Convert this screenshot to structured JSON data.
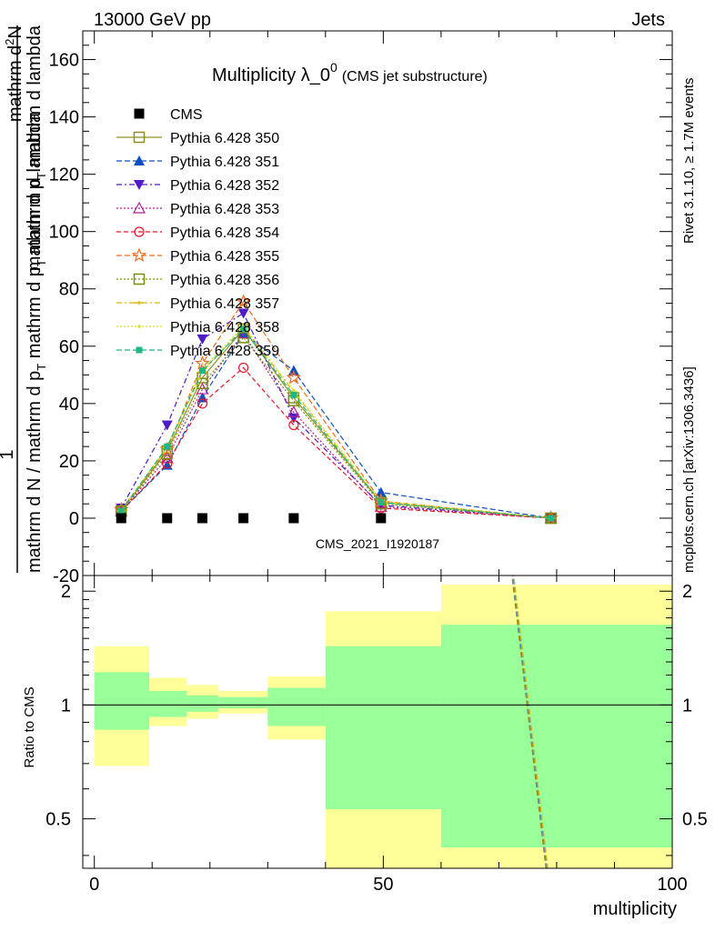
{
  "header": {
    "left": "13000 GeV pp",
    "right": "Jets"
  },
  "side_labels": {
    "rivet": "Rivet 3.1.10, ≥ 1.7M events",
    "mcplots": "mcplots.cern.ch [arXiv:1306.3436]"
  },
  "chart_data": [
    {
      "type": "line",
      "title_main": "Multiplicity λ_0",
      "title_sup": "0",
      "title_sub": "(CMS jet substructure)",
      "ylabel_top_parts": [
        "mathrm d",
        "N"
      ],
      "ylabel_top_sup": "2",
      "ylabel_mid": "mathrm d p_T mathrm d lambda",
      "ylabel_mid_parts": [
        "mathrm d p",
        "T",
        " mathrm d lambda"
      ],
      "ylabel_one": "1",
      "ylabel_bottom_parts": [
        "mathrm d N / mathrm d p",
        "T",
        " mathrm d p"
      ],
      "ylabel_bottom_end": " mathrm d lambda",
      "ylim": [
        -20,
        170
      ],
      "yticks": [
        -20,
        0,
        20,
        40,
        60,
        80,
        100,
        120,
        140,
        160
      ],
      "xlim": [
        -2,
        100
      ],
      "watermark": "CMS_2021_I1920187",
      "x": [
        4.65,
        12.6,
        18.7,
        25.8,
        34.5,
        49.6,
        79.0
      ],
      "series": [
        {
          "name": "CMS",
          "color": "#000000",
          "dash": "",
          "marker": "square-filled",
          "values": [
            0,
            0,
            0,
            0,
            0,
            0,
            null
          ]
        },
        {
          "name": "Pythia 6.428 350",
          "color": "#8f8f21",
          "dash": "",
          "marker": "square-open",
          "values": [
            2.5,
            23.5,
            49,
            66,
            42,
            5.5,
            0
          ]
        },
        {
          "name": "Pythia 6.428 351",
          "color": "#0e4fc1",
          "dash": "6,3",
          "marker": "triangle-up-filled",
          "values": [
            2.5,
            18.5,
            42,
            64.5,
            51.5,
            9,
            0
          ]
        },
        {
          "name": "Pythia 6.428 352",
          "color": "#4f1bc7",
          "dash": "6,3,2,3",
          "marker": "triangle-down-filled",
          "values": [
            3.5,
            32.5,
            62.5,
            71.5,
            35,
            4.5,
            0
          ]
        },
        {
          "name": "Pythia 6.428 353",
          "color": "#b01f8f",
          "dash": "2,2",
          "marker": "triangle-up-open",
          "values": [
            2.5,
            21,
            45,
            64.5,
            37,
            4,
            0
          ]
        },
        {
          "name": "Pythia 6.428 354",
          "color": "#e5182a",
          "dash": "5,3",
          "marker": "circle-open",
          "values": [
            2.5,
            19,
            40,
            52.5,
            32.5,
            3.5,
            0
          ]
        },
        {
          "name": "Pythia 6.428 355",
          "color": "#f26c1d",
          "dash": "6,3",
          "marker": "star-open",
          "values": [
            3,
            24,
            54,
            75.5,
            49,
            6,
            0
          ]
        },
        {
          "name": "Pythia 6.428 356",
          "color": "#7a8f10",
          "dash": "2,2",
          "marker": "square-open",
          "values": [
            2.5,
            22.5,
            47,
            63,
            41,
            5,
            0
          ]
        },
        {
          "name": "Pythia 6.428 357",
          "color": "#d9b814",
          "dash": "6,3,2,3",
          "marker": "dash-cross",
          "values": [
            2.5,
            24.5,
            51,
            66.5,
            44,
            5.5,
            0
          ]
        },
        {
          "name": "Pythia 6.428 358",
          "color": "#d8e21d",
          "dash": "2,2",
          "marker": "dot",
          "values": [
            2.5,
            25,
            52,
            67,
            44.5,
            6,
            0
          ]
        },
        {
          "name": "Pythia 6.428 359",
          "color": "#1fb883",
          "dash": "6,3",
          "marker": "square-small-filled",
          "values": [
            2.5,
            25,
            51.5,
            66,
            43,
            5.5,
            0
          ]
        }
      ]
    },
    {
      "type": "area",
      "ylabel": "Ratio to CMS",
      "xlabel": "multiplicity",
      "xlim": [
        -2,
        100
      ],
      "xticks": [
        0,
        50,
        100
      ],
      "ylim": [
        0.37,
        2.2
      ],
      "yticks": [
        0.5,
        1,
        2
      ],
      "yticklabels": [
        "0.5",
        "1",
        "2"
      ],
      "bins": [
        {
          "lo": 0,
          "hi": 9.5,
          "green": [
            0.86,
            1.22
          ],
          "yellow": [
            0.69,
            1.43
          ]
        },
        {
          "lo": 9.5,
          "hi": 16,
          "green": [
            0.93,
            1.09
          ],
          "yellow": [
            0.88,
            1.18
          ]
        },
        {
          "lo": 16,
          "hi": 21.5,
          "green": [
            0.96,
            1.06
          ],
          "yellow": [
            0.92,
            1.13
          ]
        },
        {
          "lo": 21.5,
          "hi": 30,
          "green": [
            0.98,
            1.05
          ],
          "yellow": [
            0.95,
            1.09
          ]
        },
        {
          "lo": 30,
          "hi": 40,
          "green": [
            0.88,
            1.11
          ],
          "yellow": [
            0.81,
            1.19
          ]
        },
        {
          "lo": 40,
          "hi": 60,
          "green": [
            0.53,
            1.43
          ],
          "yellow": [
            0.37,
            1.77
          ]
        },
        {
          "lo": 60,
          "hi": 100,
          "green": [
            0.42,
            1.63
          ],
          "yellow": [
            0.37,
            2.08
          ]
        }
      ],
      "ratio_line": {
        "x": [
          72,
          79
        ],
        "y": [
          2.5,
          0.3
        ],
        "color": "#5c8fb3"
      }
    }
  ],
  "colors": {
    "green_band": "#99ff99",
    "yellow_band": "#ffff99",
    "watermark": "#999999",
    "side_text": "#808080"
  }
}
